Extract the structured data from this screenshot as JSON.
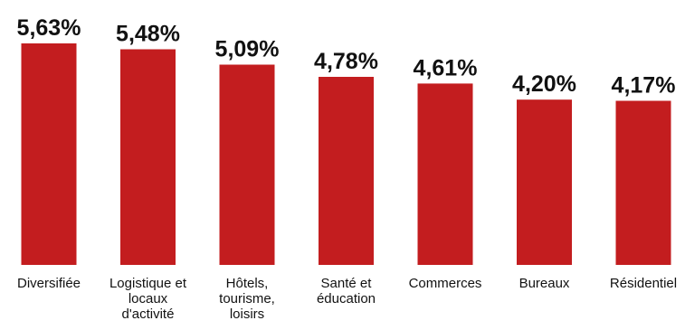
{
  "chart_data": {
    "type": "bar",
    "title": "",
    "xlabel": "",
    "ylabel": "",
    "value_format": "percent-comma",
    "categories": [
      [
        "Diversifiée"
      ],
      [
        "Logistique et",
        "locaux",
        "d'activité"
      ],
      [
        "Hôtels,",
        "tourisme,",
        "loisirs"
      ],
      [
        "Santé et",
        "éducation"
      ],
      [
        "Commerces"
      ],
      [
        "Bureaux"
      ],
      [
        "Résidentiel"
      ]
    ],
    "values": [
      5.63,
      5.48,
      5.09,
      4.78,
      4.61,
      4.2,
      4.17
    ],
    "value_labels": [
      "5,63%",
      "5,48%",
      "5,09%",
      "4,78%",
      "4,61%",
      "4,20%",
      "4,17%"
    ],
    "ylim": [
      0,
      5.63
    ],
    "grid": false,
    "legend": "none",
    "colors": {
      "bar": "#c31d1f",
      "text": "#111111"
    }
  }
}
